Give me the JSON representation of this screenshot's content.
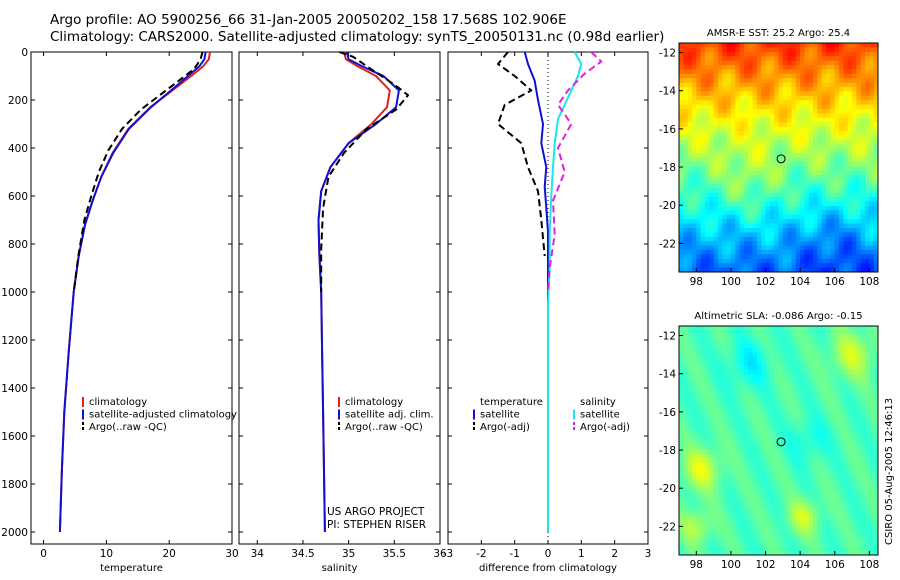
{
  "header": {
    "title_line1": "Argo profile: AO 5900256_66 31-Jan-2005 20050202_158 17.568S 102.906E",
    "title_line2": "Climatology: CARS2000. Satellite-adjusted climatology: synTS_20050131.nc (0.98d earlier)"
  },
  "credit": {
    "line1": "US ARGO PROJECT",
    "line2": "PI: STEPHEN RISER"
  },
  "side_label": "CSIRO 05-Aug-2005 12:46:13",
  "colors": {
    "climatology": "#e02020",
    "satellite": "#1010d0",
    "argo": "#000000",
    "sal_satellite": "#19e6f0",
    "sal_argo": "#e020e0"
  },
  "chart_data": [
    {
      "id": "temperature",
      "type": "line",
      "xlabel": "temperature",
      "ylabel": "",
      "xlim": [
        -2,
        30
      ],
      "ylim": [
        2050,
        0
      ],
      "xticks": [
        0,
        10,
        20,
        30
      ],
      "xtick_labels": [
        "0",
        "10",
        "20",
        "30"
      ],
      "yticks": [
        0,
        200,
        400,
        600,
        800,
        1000,
        1200,
        1400,
        1600,
        1800,
        2000
      ],
      "ytick_labels": [
        "0",
        "200",
        "400",
        "600",
        "800",
        "1000",
        "1200",
        "1400",
        "1600",
        "1800",
        "2000"
      ],
      "legend": [
        "climatology",
        "satellite-adjusted climatology",
        "Argo(..raw -QC)"
      ],
      "series": [
        {
          "name": "climatology",
          "color": "#e02020",
          "dash": false,
          "x": [
            26.5,
            26.3,
            25.4,
            23.5,
            20.5,
            17.0,
            13.5,
            11.0,
            9.2,
            7.8,
            6.6,
            5.6,
            4.8,
            4.0,
            3.3,
            2.9,
            2.6
          ],
          "y": [
            0,
            30,
            60,
            100,
            160,
            230,
            320,
            420,
            520,
            620,
            720,
            850,
            1000,
            1250,
            1500,
            1750,
            2000
          ]
        },
        {
          "name": "satellite-adjusted climatology",
          "color": "#1010d0",
          "dash": false,
          "x": [
            25.8,
            25.6,
            24.8,
            23.0,
            20.3,
            17.1,
            13.6,
            11.1,
            9.2,
            7.8,
            6.6,
            5.6,
            4.8,
            4.0,
            3.3,
            2.9,
            2.6
          ],
          "y": [
            0,
            30,
            60,
            100,
            160,
            230,
            320,
            420,
            520,
            620,
            720,
            850,
            1000,
            1250,
            1500,
            1750,
            2000
          ]
        },
        {
          "name": "Argo(..raw -QC)",
          "color": "#000000",
          "dash": true,
          "x": [
            25.3,
            25.0,
            24.0,
            22.0,
            19.0,
            15.5,
            12.5,
            10.3,
            8.8,
            7.6,
            6.5,
            5.6,
            4.8
          ],
          "y": [
            0,
            30,
            70,
            110,
            170,
            240,
            320,
            410,
            500,
            600,
            700,
            840,
            1000
          ]
        }
      ]
    },
    {
      "id": "salinity",
      "type": "line",
      "xlabel": "salinity",
      "ylabel": "",
      "xlim": [
        33.8,
        36
      ],
      "ylim": [
        2050,
        0
      ],
      "xticks": [
        34,
        34.5,
        35,
        35.5,
        36
      ],
      "xtick_labels": [
        "34",
        "34.5",
        "35",
        "35.5",
        "36"
      ],
      "legend": [
        "climatology",
        "satellite adj. clim.",
        "Argo(..raw -QC)"
      ],
      "series": [
        {
          "name": "climatology",
          "color": "#e02020",
          "dash": false,
          "x": [
            34.95,
            34.97,
            35.1,
            35.3,
            35.45,
            35.42,
            35.25,
            35.0,
            34.8,
            34.7,
            34.67,
            34.68,
            34.7,
            34.71,
            34.72,
            34.73,
            34.74
          ],
          "y": [
            0,
            30,
            60,
            100,
            160,
            230,
            300,
            380,
            480,
            580,
            700,
            850,
            1000,
            1250,
            1500,
            1750,
            2000
          ]
        },
        {
          "name": "satellite adj. clim.",
          "color": "#1010d0",
          "dash": false,
          "x": [
            34.98,
            35.0,
            35.15,
            35.38,
            35.55,
            35.52,
            35.3,
            35.0,
            34.8,
            34.7,
            34.67,
            34.68,
            34.7,
            34.71,
            34.72,
            34.73,
            34.74
          ],
          "y": [
            0,
            30,
            60,
            100,
            160,
            230,
            300,
            380,
            480,
            580,
            700,
            850,
            1000,
            1250,
            1500,
            1750,
            2000
          ]
        },
        {
          "name": "Argo(..raw -QC)",
          "color": "#000000",
          "dash": true,
          "x": [
            34.9,
            35.05,
            35.2,
            35.4,
            35.55,
            35.65,
            35.52,
            35.2,
            34.95,
            34.78,
            34.72,
            34.7,
            34.7
          ],
          "y": [
            0,
            20,
            60,
            110,
            150,
            180,
            240,
            320,
            420,
            520,
            650,
            820,
            1000
          ]
        }
      ]
    },
    {
      "id": "difference",
      "type": "line",
      "xlabel": "difference from climatology",
      "ylabel": "",
      "xlim": [
        -3,
        3
      ],
      "ylim": [
        2050,
        0
      ],
      "xticks": [
        -3,
        -2,
        -1,
        0,
        1,
        2,
        3
      ],
      "xtick_labels": [
        "-3",
        "-2",
        "-1",
        "0",
        "1",
        "2",
        "3"
      ],
      "legend_left": [
        "temperature",
        "satellite",
        "Argo(-adj)"
      ],
      "legend_right": [
        "salinity",
        "satellite",
        "Argo(-adj)"
      ],
      "series": [
        {
          "name": "temperature satellite",
          "color": "#1010d0",
          "dash": false,
          "x": [
            -0.7,
            -0.6,
            -0.4,
            -0.3,
            -0.15,
            -0.2,
            -0.05,
            -0.1,
            -0.05,
            0,
            0,
            0,
            0
          ],
          "y": [
            0,
            50,
            120,
            200,
            300,
            380,
            480,
            560,
            650,
            750,
            850,
            1000,
            2000
          ]
        },
        {
          "name": "temperature Argo(-adj)",
          "color": "#000000",
          "dash": true,
          "x": [
            -1.2,
            -1.5,
            -1.0,
            -0.5,
            -1.3,
            -1.5,
            -0.8,
            -0.6,
            -0.3,
            -0.2,
            -0.1
          ],
          "y": [
            0,
            50,
            100,
            160,
            220,
            300,
            380,
            480,
            580,
            700,
            850
          ]
        },
        {
          "name": "salinity satellite",
          "color": "#19e6f0",
          "dash": false,
          "x": [
            0.8,
            1.0,
            0.9,
            0.7,
            0.5,
            0.3,
            0.2,
            0.15,
            0.1,
            0.05,
            0.05,
            0,
            0,
            0
          ],
          "y": [
            0,
            50,
            100,
            160,
            220,
            280,
            380,
            480,
            600,
            750,
            900,
            1050,
            1150,
            2000
          ]
        },
        {
          "name": "salinity Argo(-adj)",
          "color": "#e020e0",
          "dash": true,
          "x": [
            1.3,
            1.6,
            1.1,
            0.6,
            0.3,
            0.7,
            0.3,
            0.5,
            0.15,
            0.2,
            0.05,
            0.0
          ],
          "y": [
            0,
            40,
            90,
            160,
            220,
            300,
            400,
            500,
            620,
            760,
            900,
            1000
          ]
        }
      ]
    },
    {
      "id": "sst_map",
      "type": "heatmap",
      "title": "AMSR-E SST: 25.2 Argo: 25.4",
      "xlim": [
        97,
        108.5
      ],
      "ylim": [
        -23.5,
        -11.5
      ],
      "xticks": [
        98,
        100,
        102,
        104,
        106,
        108
      ],
      "xtick_labels": [
        "98",
        "100",
        "102",
        "104",
        "106",
        "108"
      ],
      "yticks": [
        -12,
        -14,
        -16,
        -18,
        -20,
        -22
      ],
      "ytick_labels": [
        "-12",
        "-14",
        "-16",
        "-18",
        "-20",
        "-22"
      ],
      "marker": {
        "lon": 102.9,
        "lat": -17.57
      },
      "field": "sst"
    },
    {
      "id": "sla_map",
      "type": "heatmap",
      "title": "Altimetric SLA: -0.086 Argo: -0.15",
      "xlim": [
        97,
        108.5
      ],
      "ylim": [
        -23.5,
        -11.5
      ],
      "xticks": [
        98,
        100,
        102,
        104,
        106,
        108
      ],
      "xtick_labels": [
        "98",
        "100",
        "102",
        "104",
        "106",
        "108"
      ],
      "yticks": [
        -12,
        -14,
        -16,
        -18,
        -20,
        -22
      ],
      "ytick_labels": [
        "-12",
        "-14",
        "-16",
        "-18",
        "-20",
        "-22"
      ],
      "marker": {
        "lon": 102.9,
        "lat": -17.57
      },
      "field": "sla"
    }
  ]
}
